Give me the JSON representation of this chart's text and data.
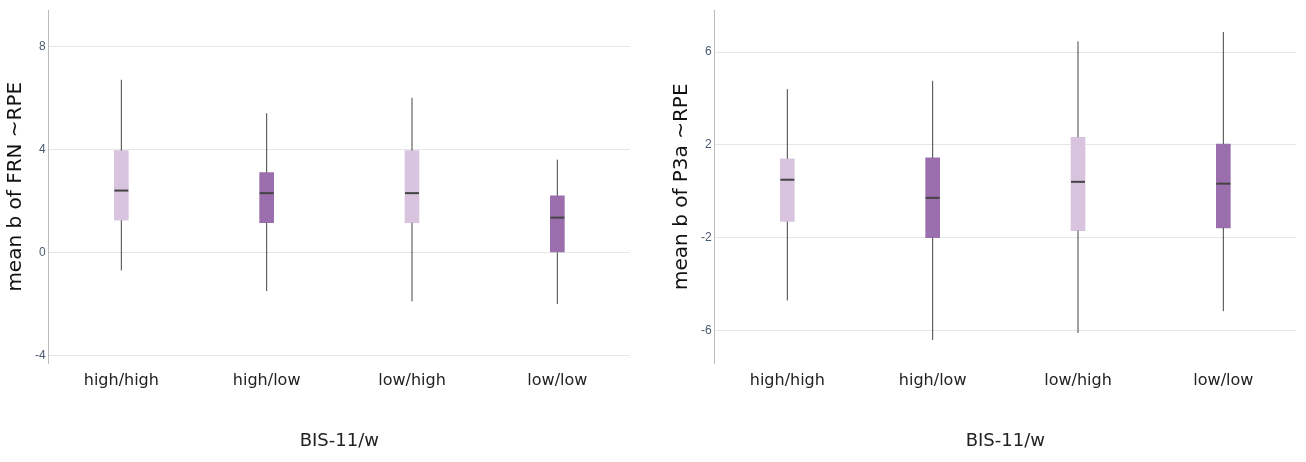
{
  "chart_data": [
    {
      "type": "box",
      "categories": [
        "high/high",
        "high/low",
        "low/high",
        "low/low"
      ],
      "xlabel": "BIS-11/w",
      "ylabel": "mean b of FRN ~RPE",
      "ylim": [
        -4.3,
        9.4
      ],
      "yticks": [
        -4,
        0,
        4,
        8
      ],
      "grid": "y",
      "legend": false,
      "series": [
        {
          "colors": [
            "#d9c4e0",
            "#9b6fae",
            "#d9c4e0",
            "#9b6fae"
          ],
          "boxes": [
            {
              "low": -0.7,
              "q1": 1.25,
              "median": 2.4,
              "q3": 3.95,
              "high": 6.7
            },
            {
              "low": -1.5,
              "q1": 1.15,
              "median": 2.3,
              "q3": 3.1,
              "high": 5.4
            },
            {
              "low": -1.9,
              "q1": 1.15,
              "median": 2.3,
              "q3": 3.95,
              "high": 6.0
            },
            {
              "low": -2.0,
              "q1": 0.0,
              "median": 1.35,
              "q3": 2.2,
              "high": 3.6
            }
          ]
        }
      ]
    },
    {
      "type": "box",
      "categories": [
        "high/high",
        "high/low",
        "low/high",
        "low/low"
      ],
      "xlabel": "BIS-11/w",
      "ylabel": "mean b of P3a ~RPE",
      "ylim": [
        -7.4,
        7.8
      ],
      "yticks": [
        -6,
        -2,
        2,
        6
      ],
      "grid": "y",
      "legend": false,
      "series": [
        {
          "colors": [
            "#d9c4e0",
            "#9b6fae",
            "#d9c4e0",
            "#9b6fae"
          ],
          "boxes": [
            {
              "low": -4.7,
              "q1": -1.3,
              "median": 0.5,
              "q3": 1.4,
              "high": 4.4
            },
            {
              "low": -6.4,
              "q1": -2.0,
              "median": -0.28,
              "q3": 1.44,
              "high": 4.76
            },
            {
              "low": -6.1,
              "q1": -1.69,
              "median": 0.41,
              "q3": 2.33,
              "high": 6.46
            },
            {
              "low": -5.16,
              "q1": -1.57,
              "median": 0.33,
              "q3": 2.03,
              "high": 6.86
            }
          ]
        }
      ]
    }
  ]
}
